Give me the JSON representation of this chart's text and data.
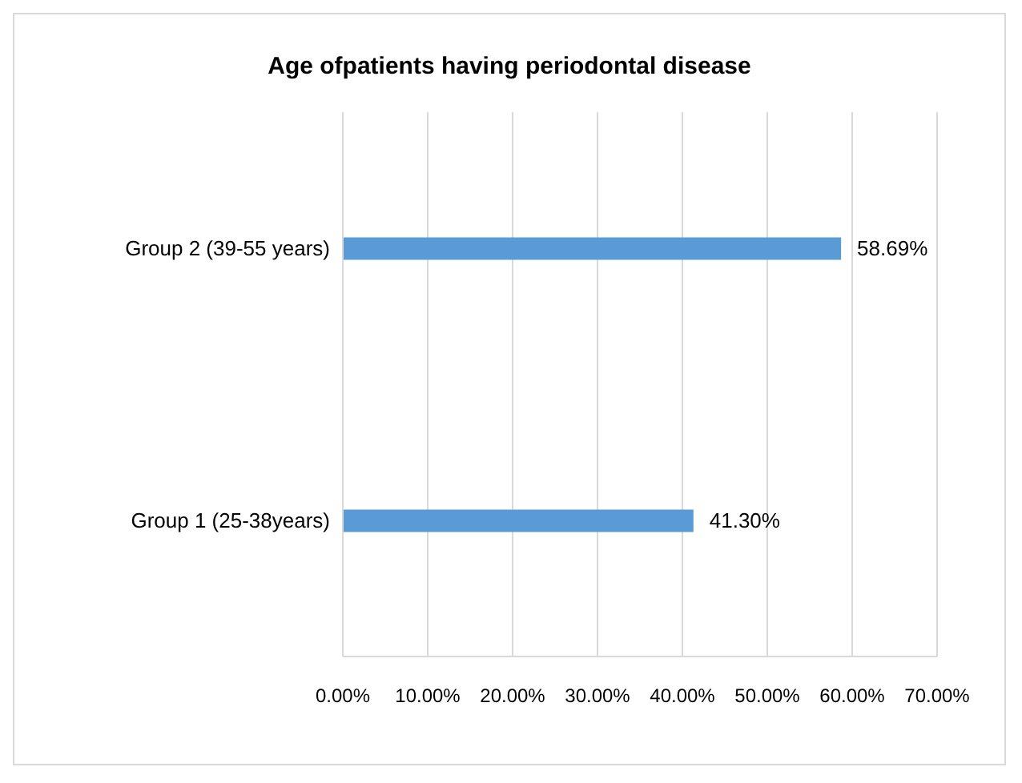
{
  "chart_data": {
    "type": "bar",
    "orientation": "horizontal",
    "title": "Age ofpatients having periodontal disease",
    "categories": [
      "Group 2 (39-55 years)",
      "Group 1 (25-38years)"
    ],
    "values": [
      58.69,
      41.3
    ],
    "color": "#5b9bd5",
    "value_labels": [
      "58.69%",
      "41.30%"
    ],
    "xlim": [
      0,
      70
    ],
    "xticks": [
      {
        "value": 0,
        "label": "0.00%"
      },
      {
        "value": 10,
        "label": "10.00%"
      },
      {
        "value": 20,
        "label": "20.00%"
      },
      {
        "value": 30,
        "label": "30.00%"
      },
      {
        "value": 40,
        "label": "40.00%"
      },
      {
        "value": 50,
        "label": "50.00%"
      },
      {
        "value": 60,
        "label": "60.00%"
      },
      {
        "value": 70,
        "label": "70.00%"
      }
    ],
    "grid": "x",
    "legend": false
  }
}
